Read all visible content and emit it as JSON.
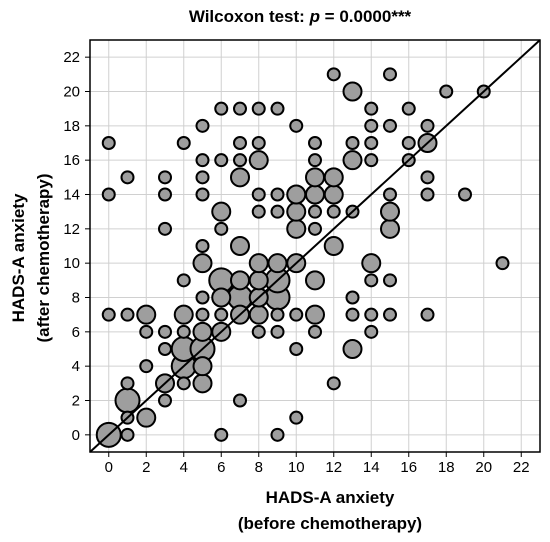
{
  "chart_data": {
    "type": "scatter",
    "title_prefix": "Wilcoxon test: ",
    "title_italic": "p",
    "title_suffix": " = 0.0000***",
    "xlabel_line1": "HADS-A anxiety",
    "xlabel_line2": "(before chemotherapy)",
    "ylabel_line1": "HADS-A anxiety",
    "ylabel_line2": "(after chemotherapy)",
    "xlim": [
      -1,
      23
    ],
    "ylim": [
      -1,
      23
    ],
    "xticks": [
      0,
      2,
      4,
      6,
      8,
      10,
      12,
      14,
      16,
      18,
      20,
      22
    ],
    "yticks": [
      0,
      2,
      4,
      6,
      8,
      10,
      12,
      14,
      16,
      18,
      20,
      22
    ],
    "grid": true,
    "reference_line": "y = x",
    "marker_fill": "#9e9e9e",
    "marker_edge": "#000000",
    "points": [
      {
        "x": 0,
        "y": 0,
        "n": 3
      },
      {
        "x": 0,
        "y": 7,
        "n": 1
      },
      {
        "x": 0,
        "y": 14,
        "n": 1
      },
      {
        "x": 0,
        "y": 17,
        "n": 1
      },
      {
        "x": 1,
        "y": 0,
        "n": 1
      },
      {
        "x": 1,
        "y": 1,
        "n": 1
      },
      {
        "x": 1,
        "y": 2,
        "n": 3
      },
      {
        "x": 1,
        "y": 3,
        "n": 1
      },
      {
        "x": 1,
        "y": 7,
        "n": 1
      },
      {
        "x": 1,
        "y": 15,
        "n": 1
      },
      {
        "x": 2,
        "y": 1,
        "n": 2
      },
      {
        "x": 2,
        "y": 4,
        "n": 1
      },
      {
        "x": 2,
        "y": 6,
        "n": 1
      },
      {
        "x": 2,
        "y": 7,
        "n": 2
      },
      {
        "x": 3,
        "y": 2,
        "n": 1
      },
      {
        "x": 3,
        "y": 3,
        "n": 2
      },
      {
        "x": 3,
        "y": 5,
        "n": 1
      },
      {
        "x": 3,
        "y": 6,
        "n": 1
      },
      {
        "x": 3,
        "y": 12,
        "n": 1
      },
      {
        "x": 3,
        "y": 14,
        "n": 1
      },
      {
        "x": 3,
        "y": 15,
        "n": 1
      },
      {
        "x": 4,
        "y": 3,
        "n": 1
      },
      {
        "x": 4,
        "y": 4,
        "n": 3
      },
      {
        "x": 4,
        "y": 5,
        "n": 3
      },
      {
        "x": 4,
        "y": 6,
        "n": 1
      },
      {
        "x": 4,
        "y": 7,
        "n": 2
      },
      {
        "x": 4,
        "y": 9,
        "n": 1
      },
      {
        "x": 4,
        "y": 17,
        "n": 1
      },
      {
        "x": 5,
        "y": 3,
        "n": 2
      },
      {
        "x": 5,
        "y": 4,
        "n": 2
      },
      {
        "x": 5,
        "y": 5,
        "n": 3
      },
      {
        "x": 5,
        "y": 6,
        "n": 2
      },
      {
        "x": 5,
        "y": 7,
        "n": 1
      },
      {
        "x": 5,
        "y": 8,
        "n": 1
      },
      {
        "x": 5,
        "y": 10,
        "n": 2
      },
      {
        "x": 5,
        "y": 11,
        "n": 1
      },
      {
        "x": 5,
        "y": 14,
        "n": 1
      },
      {
        "x": 5,
        "y": 15,
        "n": 1
      },
      {
        "x": 5,
        "y": 16,
        "n": 1
      },
      {
        "x": 5,
        "y": 18,
        "n": 1
      },
      {
        "x": 6,
        "y": 0,
        "n": 1
      },
      {
        "x": 6,
        "y": 6,
        "n": 2
      },
      {
        "x": 6,
        "y": 7,
        "n": 1
      },
      {
        "x": 6,
        "y": 8,
        "n": 2
      },
      {
        "x": 6,
        "y": 9,
        "n": 3
      },
      {
        "x": 6,
        "y": 12,
        "n": 1
      },
      {
        "x": 6,
        "y": 13,
        "n": 2
      },
      {
        "x": 6,
        "y": 16,
        "n": 1
      },
      {
        "x": 6,
        "y": 19,
        "n": 1
      },
      {
        "x": 7,
        "y": 2,
        "n": 1
      },
      {
        "x": 7,
        "y": 7,
        "n": 2
      },
      {
        "x": 7,
        "y": 8,
        "n": 3
      },
      {
        "x": 7,
        "y": 9,
        "n": 2
      },
      {
        "x": 7,
        "y": 11,
        "n": 2
      },
      {
        "x": 7,
        "y": 15,
        "n": 2
      },
      {
        "x": 7,
        "y": 16,
        "n": 1
      },
      {
        "x": 7,
        "y": 17,
        "n": 1
      },
      {
        "x": 7,
        "y": 19,
        "n": 1
      },
      {
        "x": 8,
        "y": 6,
        "n": 1
      },
      {
        "x": 8,
        "y": 7,
        "n": 2
      },
      {
        "x": 8,
        "y": 8,
        "n": 2
      },
      {
        "x": 8,
        "y": 9,
        "n": 2
      },
      {
        "x": 8,
        "y": 10,
        "n": 2
      },
      {
        "x": 8,
        "y": 13,
        "n": 1
      },
      {
        "x": 8,
        "y": 14,
        "n": 1
      },
      {
        "x": 8,
        "y": 16,
        "n": 2
      },
      {
        "x": 8,
        "y": 17,
        "n": 1
      },
      {
        "x": 8,
        "y": 19,
        "n": 1
      },
      {
        "x": 9,
        "y": 0,
        "n": 1
      },
      {
        "x": 9,
        "y": 6,
        "n": 1
      },
      {
        "x": 9,
        "y": 7,
        "n": 1
      },
      {
        "x": 9,
        "y": 8,
        "n": 3
      },
      {
        "x": 9,
        "y": 9,
        "n": 3
      },
      {
        "x": 9,
        "y": 10,
        "n": 2
      },
      {
        "x": 9,
        "y": 13,
        "n": 1
      },
      {
        "x": 9,
        "y": 14,
        "n": 1
      },
      {
        "x": 9,
        "y": 19,
        "n": 1
      },
      {
        "x": 10,
        "y": 1,
        "n": 1
      },
      {
        "x": 10,
        "y": 5,
        "n": 1
      },
      {
        "x": 10,
        "y": 7,
        "n": 1
      },
      {
        "x": 10,
        "y": 10,
        "n": 2
      },
      {
        "x": 10,
        "y": 12,
        "n": 2
      },
      {
        "x": 10,
        "y": 13,
        "n": 2
      },
      {
        "x": 10,
        "y": 14,
        "n": 2
      },
      {
        "x": 10,
        "y": 18,
        "n": 1
      },
      {
        "x": 11,
        "y": 6,
        "n": 1
      },
      {
        "x": 11,
        "y": 7,
        "n": 2
      },
      {
        "x": 11,
        "y": 9,
        "n": 2
      },
      {
        "x": 11,
        "y": 12,
        "n": 1
      },
      {
        "x": 11,
        "y": 13,
        "n": 1
      },
      {
        "x": 11,
        "y": 14,
        "n": 2
      },
      {
        "x": 11,
        "y": 15,
        "n": 2
      },
      {
        "x": 11,
        "y": 16,
        "n": 1
      },
      {
        "x": 11,
        "y": 17,
        "n": 1
      },
      {
        "x": 12,
        "y": 3,
        "n": 1
      },
      {
        "x": 12,
        "y": 11,
        "n": 2
      },
      {
        "x": 12,
        "y": 13,
        "n": 1
      },
      {
        "x": 12,
        "y": 14,
        "n": 2
      },
      {
        "x": 12,
        "y": 15,
        "n": 2
      },
      {
        "x": 12,
        "y": 21,
        "n": 1
      },
      {
        "x": 13,
        "y": 5,
        "n": 2
      },
      {
        "x": 13,
        "y": 7,
        "n": 1
      },
      {
        "x": 13,
        "y": 8,
        "n": 1
      },
      {
        "x": 13,
        "y": 13,
        "n": 1
      },
      {
        "x": 13,
        "y": 16,
        "n": 2
      },
      {
        "x": 13,
        "y": 17,
        "n": 1
      },
      {
        "x": 13,
        "y": 20,
        "n": 2
      },
      {
        "x": 14,
        "y": 6,
        "n": 1
      },
      {
        "x": 14,
        "y": 7,
        "n": 1
      },
      {
        "x": 14,
        "y": 9,
        "n": 1
      },
      {
        "x": 14,
        "y": 10,
        "n": 2
      },
      {
        "x": 14,
        "y": 16,
        "n": 1
      },
      {
        "x": 14,
        "y": 17,
        "n": 1
      },
      {
        "x": 14,
        "y": 18,
        "n": 1
      },
      {
        "x": 14,
        "y": 19,
        "n": 1
      },
      {
        "x": 15,
        "y": 7,
        "n": 1
      },
      {
        "x": 15,
        "y": 9,
        "n": 1
      },
      {
        "x": 15,
        "y": 12,
        "n": 2
      },
      {
        "x": 15,
        "y": 13,
        "n": 2
      },
      {
        "x": 15,
        "y": 14,
        "n": 1
      },
      {
        "x": 15,
        "y": 18,
        "n": 1
      },
      {
        "x": 15,
        "y": 21,
        "n": 1
      },
      {
        "x": 16,
        "y": 16,
        "n": 1
      },
      {
        "x": 16,
        "y": 17,
        "n": 1
      },
      {
        "x": 16,
        "y": 19,
        "n": 1
      },
      {
        "x": 17,
        "y": 7,
        "n": 1
      },
      {
        "x": 17,
        "y": 14,
        "n": 1
      },
      {
        "x": 17,
        "y": 15,
        "n": 1
      },
      {
        "x": 17,
        "y": 17,
        "n": 2
      },
      {
        "x": 17,
        "y": 18,
        "n": 1
      },
      {
        "x": 18,
        "y": 20,
        "n": 1
      },
      {
        "x": 19,
        "y": 14,
        "n": 1
      },
      {
        "x": 20,
        "y": 20,
        "n": 1
      },
      {
        "x": 21,
        "y": 10,
        "n": 1
      }
    ]
  }
}
